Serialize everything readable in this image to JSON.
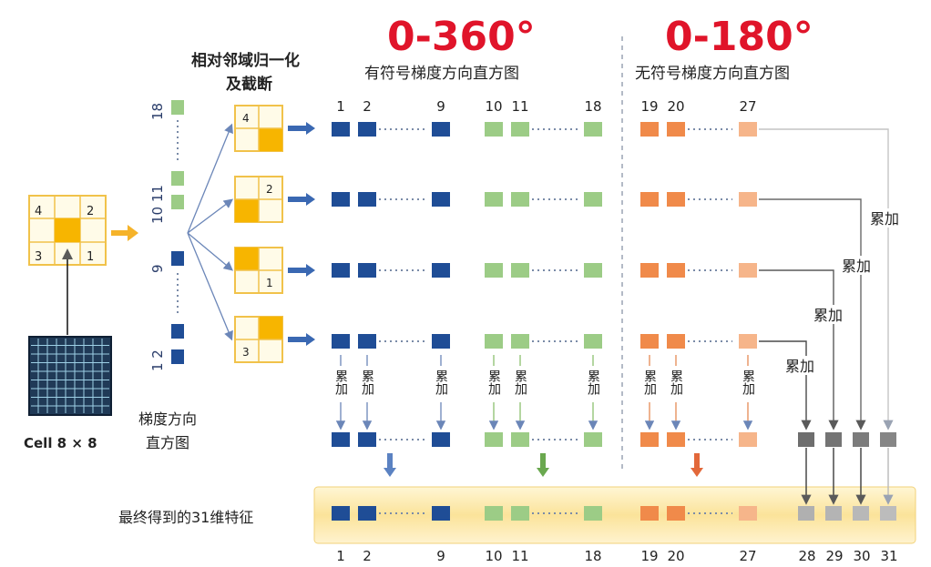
{
  "handwritten": {
    "signed_range": "0-360°",
    "unsigned_range": "0-180°"
  },
  "headings": {
    "normalize_line1": "相对邻域归一化",
    "normalize_line2": "及截断",
    "signed": "有符号梯度方向直方图",
    "unsigned": "无符号梯度方向直方图"
  },
  "left": {
    "cell_label": "Cell 8 × 8",
    "histogram_line1": "梯度方向",
    "histogram_line2": "直方图",
    "cell_numbers": [
      "4",
      "2",
      "3",
      "1"
    ],
    "histogram_ticks": [
      "18",
      "10 11",
      "9",
      "1 2"
    ]
  },
  "normalized_cells": {
    "cell1": "4",
    "cell2": "2",
    "cell3": "1",
    "cell4": "3"
  },
  "top_indices": {
    "signed_a": [
      "1",
      "2",
      "9"
    ],
    "signed_b": [
      "10",
      "11",
      "18"
    ],
    "unsigned": [
      "19",
      "20",
      "27"
    ]
  },
  "accumulate": "累加",
  "vertical_accumulate": "累加",
  "final": {
    "label": "最终得到的31维特征",
    "indices": [
      "1",
      "2",
      "9",
      "10",
      "11",
      "18",
      "19",
      "20",
      "27",
      "28",
      "29",
      "30",
      "31"
    ]
  },
  "colors": {
    "blue": "#1f4d96",
    "green": "#9ccc86",
    "orange": "#f08a4a",
    "orange_light": "#f6b58a",
    "gray": "#707070",
    "gray_light": "#b5b5b5",
    "yellow": "#f7b500",
    "band": "#fbe6a6"
  }
}
